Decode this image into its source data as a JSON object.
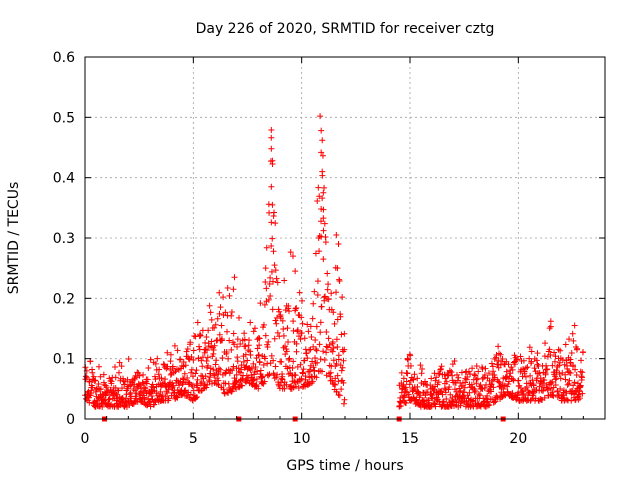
{
  "chart_data": {
    "type": "scatter",
    "title": "Day 226 of 2020, SRMTID for receiver cztg",
    "xlabel": "GPS time / hours",
    "ylabel": "SRMTID / TECUs",
    "xlim": [
      0,
      24
    ],
    "ylim": [
      0,
      0.6
    ],
    "x_ticks": [
      0,
      5,
      10,
      15,
      20
    ],
    "y_ticks": [
      0,
      0.1,
      0.2,
      0.3,
      0.4,
      0.5,
      0.6
    ],
    "x_tick_labels": [
      "0",
      "5",
      "10",
      "15",
      "20"
    ],
    "y_tick_labels": [
      "0",
      "0.1",
      "0.2",
      "0.3",
      "0.4",
      "0.5",
      "0.6"
    ],
    "grid": true,
    "marker": "+",
    "colors": {
      "series": "#ff0000",
      "grid": "#a0a0a0",
      "axes": "#000000"
    },
    "series": [
      {
        "name": "SRMTID",
        "description": "dense scatter of points; envelope digitised as [hour, typical_low, typical_high, peak]",
        "envelope": [
          [
            0.0,
            0.03,
            0.1,
            0.12
          ],
          [
            0.5,
            0.02,
            0.08,
            0.1
          ],
          [
            1.0,
            0.02,
            0.06,
            0.08
          ],
          [
            1.5,
            0.02,
            0.07,
            0.09
          ],
          [
            2.0,
            0.02,
            0.07,
            0.12
          ],
          [
            2.5,
            0.03,
            0.08,
            0.1
          ],
          [
            3.0,
            0.02,
            0.08,
            0.1
          ],
          [
            3.5,
            0.03,
            0.09,
            0.11
          ],
          [
            4.0,
            0.03,
            0.09,
            0.12
          ],
          [
            4.5,
            0.04,
            0.11,
            0.13
          ],
          [
            5.0,
            0.03,
            0.11,
            0.14
          ],
          [
            5.5,
            0.05,
            0.16,
            0.2
          ],
          [
            6.0,
            0.06,
            0.17,
            0.2
          ],
          [
            6.5,
            0.04,
            0.19,
            0.23
          ],
          [
            7.0,
            0.05,
            0.14,
            0.17
          ],
          [
            7.5,
            0.06,
            0.14,
            0.16
          ],
          [
            8.0,
            0.05,
            0.15,
            0.17
          ],
          [
            8.3,
            0.06,
            0.22,
            0.27
          ],
          [
            8.6,
            0.08,
            0.45,
            0.48
          ],
          [
            9.0,
            0.05,
            0.18,
            0.2
          ],
          [
            9.5,
            0.05,
            0.2,
            0.28
          ],
          [
            10.0,
            0.05,
            0.17,
            0.2
          ],
          [
            10.5,
            0.06,
            0.18,
            0.2
          ],
          [
            10.9,
            0.08,
            0.47,
            0.5
          ],
          [
            11.3,
            0.06,
            0.17,
            0.2
          ],
          [
            11.7,
            0.04,
            0.25,
            0.3
          ],
          [
            12.0,
            0.02,
            0.17,
            0.2
          ],
          [
            14.5,
            0.02,
            0.06,
            0.08
          ],
          [
            15.0,
            0.03,
            0.09,
            0.11
          ],
          [
            15.5,
            0.02,
            0.07,
            0.09
          ],
          [
            16.0,
            0.02,
            0.06,
            0.08
          ],
          [
            16.5,
            0.02,
            0.09,
            0.1
          ],
          [
            17.0,
            0.02,
            0.08,
            0.1
          ],
          [
            17.5,
            0.02,
            0.06,
            0.08
          ],
          [
            18.0,
            0.02,
            0.1,
            0.12
          ],
          [
            18.5,
            0.02,
            0.07,
            0.09
          ],
          [
            19.0,
            0.03,
            0.11,
            0.13
          ],
          [
            19.5,
            0.04,
            0.09,
            0.1
          ],
          [
            20.0,
            0.03,
            0.1,
            0.11
          ],
          [
            20.5,
            0.03,
            0.11,
            0.12
          ],
          [
            21.0,
            0.03,
            0.1,
            0.12
          ],
          [
            21.5,
            0.04,
            0.13,
            0.16
          ],
          [
            22.0,
            0.03,
            0.1,
            0.12
          ],
          [
            22.5,
            0.03,
            0.11,
            0.15
          ],
          [
            23.0,
            0.03,
            0.1,
            0.12
          ]
        ],
        "extra_points": [
          [
            8.6,
            0.479
          ],
          [
            8.6,
            0.448
          ],
          [
            8.65,
            0.428
          ],
          [
            8.6,
            0.385
          ],
          [
            8.65,
            0.355
          ],
          [
            8.6,
            0.326
          ],
          [
            8.7,
            0.278
          ],
          [
            8.75,
            0.255
          ],
          [
            10.85,
            0.502
          ],
          [
            10.9,
            0.478
          ],
          [
            10.95,
            0.462
          ],
          [
            10.9,
            0.442
          ],
          [
            10.95,
            0.41
          ],
          [
            11.0,
            0.375
          ],
          [
            10.9,
            0.348
          ],
          [
            11.0,
            0.333
          ],
          [
            10.9,
            0.302
          ],
          [
            11.0,
            0.265
          ],
          [
            11.6,
            0.305
          ],
          [
            11.7,
            0.29
          ],
          [
            11.65,
            0.25
          ],
          [
            9.6,
            0.27
          ],
          [
            9.7,
            0.245
          ],
          [
            6.9,
            0.235
          ],
          [
            6.85,
            0.215
          ],
          [
            22.6,
            0.155
          ],
          [
            21.5,
            0.162
          ]
        ]
      }
    ],
    "gap_markers": [
      0.9,
      7.1,
      9.7,
      14.5,
      19.3
    ]
  }
}
